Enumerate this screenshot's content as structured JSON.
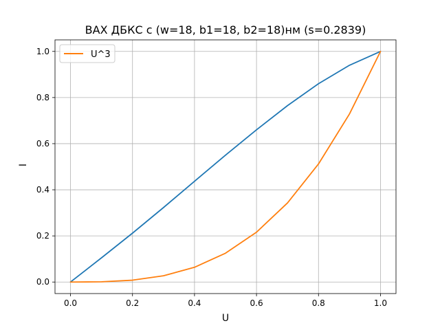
{
  "chart_data": {
    "type": "line",
    "title": "ВАХ ДБКС с (w=18, b1=18, b2=18)нм (s=0.2839)",
    "xlabel": "U",
    "ylabel": "I",
    "xlim": [
      -0.05,
      1.05
    ],
    "ylim": [
      -0.05,
      1.05
    ],
    "xticks": [
      0.0,
      0.2,
      0.4,
      0.6,
      0.8,
      1.0
    ],
    "yticks": [
      0.0,
      0.2,
      0.4,
      0.6,
      0.8,
      1.0
    ],
    "xtick_labels": [
      "0.0",
      "0.2",
      "0.4",
      "0.6",
      "0.8",
      "1.0"
    ],
    "ytick_labels": [
      "0.0",
      "0.2",
      "0.4",
      "0.6",
      "0.8",
      "1.0"
    ],
    "grid": true,
    "legend": {
      "position": "top-left"
    },
    "series": [
      {
        "color": "#1f77b4",
        "x": [
          0.0,
          0.1,
          0.2,
          0.3,
          0.4,
          0.5,
          0.6,
          0.7,
          0.8,
          0.9,
          1.0
        ],
        "y": [
          0.0,
          0.105,
          0.212,
          0.323,
          0.437,
          0.55,
          0.66,
          0.765,
          0.86,
          0.94,
          1.0
        ]
      },
      {
        "name": "U^3",
        "color": "#ff7f0e",
        "x": [
          0.0,
          0.1,
          0.2,
          0.3,
          0.4,
          0.5,
          0.6,
          0.7,
          0.8,
          0.9,
          1.0
        ],
        "y": [
          0.0,
          0.001,
          0.008,
          0.027,
          0.064,
          0.125,
          0.216,
          0.343,
          0.512,
          0.729,
          1.0
        ]
      }
    ]
  }
}
